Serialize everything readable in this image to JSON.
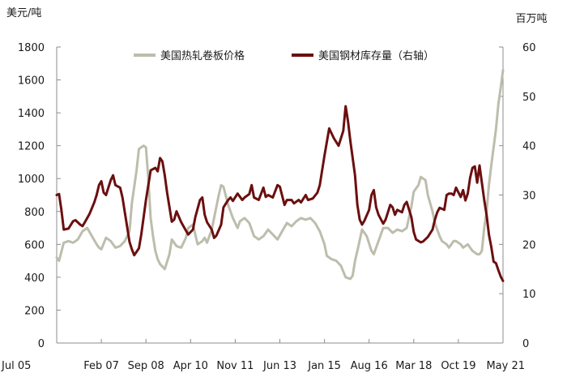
{
  "chart_data": {
    "type": "line",
    "x_tick_labels": [
      "Jul 05",
      "Feb 07",
      "Sep 08",
      "Apr 10",
      "Nov 11",
      "Jun 13",
      "Jan 15",
      "Aug 16",
      "Mar 18",
      "Oct 19",
      "May 21"
    ],
    "x_start": "2005-07",
    "x_end": "2021-05",
    "y_left": {
      "unit": "美元/吨",
      "min": 0,
      "max": 1800,
      "ticks": [
        0,
        200,
        400,
        600,
        800,
        1000,
        1200,
        1400,
        1600,
        1800
      ]
    },
    "y_right": {
      "unit": "百万吨",
      "min": 0,
      "max": 60,
      "ticks": [
        0,
        10,
        20,
        30,
        40,
        50,
        60
      ]
    },
    "grid": false,
    "legend_position": "top",
    "series": [
      {
        "name": "美国热轧卷板价格",
        "axis": "left",
        "color": "#bdbdad",
        "points": [
          [
            "2005-07",
            520
          ],
          [
            "2005-08",
            500
          ],
          [
            "2005-10",
            610
          ],
          [
            "2005-12",
            620
          ],
          [
            "2006-02",
            610
          ],
          [
            "2006-04",
            630
          ],
          [
            "2006-06",
            680
          ],
          [
            "2006-08",
            700
          ],
          [
            "2006-10",
            650
          ],
          [
            "2006-12",
            600
          ],
          [
            "2007-01",
            580
          ],
          [
            "2007-02",
            570
          ],
          [
            "2007-04",
            640
          ],
          [
            "2007-06",
            620
          ],
          [
            "2007-08",
            580
          ],
          [
            "2007-10",
            590
          ],
          [
            "2007-12",
            620
          ],
          [
            "2008-02",
            680
          ],
          [
            "2008-03",
            850
          ],
          [
            "2008-05",
            1050
          ],
          [
            "2008-06",
            1180
          ],
          [
            "2008-08",
            1200
          ],
          [
            "2008-09",
            1190
          ],
          [
            "2008-10",
            1000
          ],
          [
            "2008-11",
            760
          ],
          [
            "2008-12",
            650
          ],
          [
            "2009-01",
            560
          ],
          [
            "2009-02",
            510
          ],
          [
            "2009-03",
            480
          ],
          [
            "2009-05",
            450
          ],
          [
            "2009-07",
            540
          ],
          [
            "2009-08",
            630
          ],
          [
            "2009-10",
            590
          ],
          [
            "2009-12",
            580
          ],
          [
            "2010-02",
            640
          ],
          [
            "2010-03",
            700
          ],
          [
            "2010-05",
            720
          ],
          [
            "2010-07",
            600
          ],
          [
            "2010-09",
            620
          ],
          [
            "2010-10",
            640
          ],
          [
            "2010-11",
            610
          ],
          [
            "2011-01",
            690
          ],
          [
            "2011-03",
            830
          ],
          [
            "2011-04",
            900
          ],
          [
            "2011-05",
            960
          ],
          [
            "2011-06",
            950
          ],
          [
            "2011-08",
            840
          ],
          [
            "2011-10",
            760
          ],
          [
            "2011-12",
            700
          ],
          [
            "2012-01",
            740
          ],
          [
            "2012-03",
            760
          ],
          [
            "2012-05",
            730
          ],
          [
            "2012-07",
            650
          ],
          [
            "2012-09",
            630
          ],
          [
            "2012-11",
            650
          ],
          [
            "2013-01",
            690
          ],
          [
            "2013-03",
            660
          ],
          [
            "2013-05",
            630
          ],
          [
            "2013-07",
            680
          ],
          [
            "2013-09",
            730
          ],
          [
            "2013-11",
            710
          ],
          [
            "2014-01",
            740
          ],
          [
            "2014-03",
            760
          ],
          [
            "2014-05",
            750
          ],
          [
            "2014-07",
            760
          ],
          [
            "2014-09",
            730
          ],
          [
            "2014-11",
            680
          ],
          [
            "2015-01",
            600
          ],
          [
            "2015-02",
            530
          ],
          [
            "2015-04",
            510
          ],
          [
            "2015-06",
            500
          ],
          [
            "2015-08",
            470
          ],
          [
            "2015-10",
            400
          ],
          [
            "2015-12",
            390
          ],
          [
            "2016-01",
            410
          ],
          [
            "2016-02",
            500
          ],
          [
            "2016-03",
            560
          ],
          [
            "2016-05",
            690
          ],
          [
            "2016-07",
            650
          ],
          [
            "2016-09",
            560
          ],
          [
            "2016-10",
            540
          ],
          [
            "2016-12",
            620
          ],
          [
            "2017-02",
            700
          ],
          [
            "2017-04",
            700
          ],
          [
            "2017-06",
            670
          ],
          [
            "2017-08",
            690
          ],
          [
            "2017-10",
            680
          ],
          [
            "2017-12",
            700
          ],
          [
            "2018-02",
            830
          ],
          [
            "2018-03",
            920
          ],
          [
            "2018-05",
            960
          ],
          [
            "2018-06",
            1010
          ],
          [
            "2018-08",
            990
          ],
          [
            "2018-09",
            900
          ],
          [
            "2018-11",
            800
          ],
          [
            "2018-12",
            730
          ],
          [
            "2019-02",
            650
          ],
          [
            "2019-03",
            620
          ],
          [
            "2019-05",
            600
          ],
          [
            "2019-06",
            580
          ],
          [
            "2019-08",
            620
          ],
          [
            "2019-09",
            620
          ],
          [
            "2019-11",
            600
          ],
          [
            "2019-12",
            580
          ],
          [
            "2020-01",
            590
          ],
          [
            "2020-02",
            600
          ],
          [
            "2020-04",
            560
          ],
          [
            "2020-06",
            540
          ],
          [
            "2020-07",
            540
          ],
          [
            "2020-08",
            560
          ],
          [
            "2020-09",
            700
          ],
          [
            "2020-10",
            800
          ],
          [
            "2020-11",
            960
          ],
          [
            "2020-12",
            1080
          ],
          [
            "2021-02",
            1300
          ],
          [
            "2021-03",
            1450
          ],
          [
            "2021-04",
            1550
          ],
          [
            "2021-05",
            1660
          ]
        ]
      },
      {
        "name": "美国钢材库存量（右轴）",
        "axis": "right",
        "color": "#6b0f0f",
        "points": [
          [
            "2005-07",
            30.0
          ],
          [
            "2005-08",
            30.2
          ],
          [
            "2005-09",
            27.0
          ],
          [
            "2005-10",
            23.0
          ],
          [
            "2005-12",
            23.2
          ],
          [
            "2006-02",
            24.7
          ],
          [
            "2006-03",
            24.9
          ],
          [
            "2006-05",
            24.0
          ],
          [
            "2006-06",
            23.7
          ],
          [
            "2006-07",
            24.5
          ],
          [
            "2006-09",
            26.2
          ],
          [
            "2006-11",
            28.5
          ],
          [
            "2006-12",
            30.0
          ],
          [
            "2007-01",
            32.0
          ],
          [
            "2007-02",
            32.8
          ],
          [
            "2007-03",
            30.5
          ],
          [
            "2007-04",
            30.0
          ],
          [
            "2007-06",
            33.0
          ],
          [
            "2007-07",
            34.0
          ],
          [
            "2007-08",
            32.0
          ],
          [
            "2007-10",
            31.5
          ],
          [
            "2007-11",
            29.5
          ],
          [
            "2008-01",
            23.5
          ],
          [
            "2008-02",
            20.5
          ],
          [
            "2008-03",
            19.0
          ],
          [
            "2008-04",
            17.8
          ],
          [
            "2008-05",
            18.5
          ],
          [
            "2008-06",
            19.2
          ],
          [
            "2008-07",
            22.0
          ],
          [
            "2008-09",
            29.0
          ],
          [
            "2008-11",
            35.0
          ],
          [
            "2009-01",
            35.5
          ],
          [
            "2009-02",
            34.8
          ],
          [
            "2009-03",
            37.5
          ],
          [
            "2009-04",
            36.8
          ],
          [
            "2009-05",
            34.0
          ],
          [
            "2009-06",
            30.5
          ],
          [
            "2009-08",
            24.6
          ],
          [
            "2009-09",
            25.0
          ],
          [
            "2009-10",
            26.7
          ],
          [
            "2009-12",
            24.5
          ],
          [
            "2010-02",
            22.8
          ],
          [
            "2010-03",
            22.0
          ],
          [
            "2010-05",
            23.0
          ],
          [
            "2010-06",
            25.5
          ],
          [
            "2010-08",
            29.0
          ],
          [
            "2010-09",
            29.5
          ],
          [
            "2010-10",
            26.0
          ],
          [
            "2010-11",
            24.5
          ],
          [
            "2011-01",
            23.0
          ],
          [
            "2011-02",
            21.3
          ],
          [
            "2011-03",
            21.8
          ],
          [
            "2011-05",
            24.0
          ],
          [
            "2011-06",
            27.5
          ],
          [
            "2011-08",
            29.0
          ],
          [
            "2011-09",
            29.5
          ],
          [
            "2011-10",
            28.8
          ],
          [
            "2011-12",
            30.3
          ],
          [
            "2012-02",
            29.0
          ],
          [
            "2012-03",
            29.5
          ],
          [
            "2012-05",
            30.2
          ],
          [
            "2012-06",
            32.0
          ],
          [
            "2012-07",
            29.5
          ],
          [
            "2012-09",
            29.0
          ],
          [
            "2012-11",
            31.5
          ],
          [
            "2012-12",
            29.6
          ],
          [
            "2013-01",
            30.0
          ],
          [
            "2013-03",
            29.5
          ],
          [
            "2013-05",
            32.0
          ],
          [
            "2013-06",
            31.7
          ],
          [
            "2013-08",
            28.0
          ],
          [
            "2013-09",
            29.0
          ],
          [
            "2013-11",
            29.0
          ],
          [
            "2013-12",
            28.3
          ],
          [
            "2014-02",
            29.0
          ],
          [
            "2014-03",
            28.5
          ],
          [
            "2014-05",
            30.0
          ],
          [
            "2014-06",
            29.0
          ],
          [
            "2014-08",
            29.3
          ],
          [
            "2014-10",
            30.5
          ],
          [
            "2014-11",
            32.0
          ],
          [
            "2015-01",
            38.0
          ],
          [
            "2015-03",
            43.5
          ],
          [
            "2015-05",
            41.5
          ],
          [
            "2015-07",
            40.0
          ],
          [
            "2015-09",
            43.0
          ],
          [
            "2015-10",
            48.0
          ],
          [
            "2015-11",
            45.0
          ],
          [
            "2015-12",
            41.0
          ],
          [
            "2016-02",
            34.0
          ],
          [
            "2016-03",
            28.0
          ],
          [
            "2016-04",
            25.0
          ],
          [
            "2016-05",
            24.0
          ],
          [
            "2016-06",
            24.8
          ],
          [
            "2016-08",
            27.0
          ],
          [
            "2016-09",
            30.0
          ],
          [
            "2016-10",
            31.0
          ],
          [
            "2016-11",
            27.5
          ],
          [
            "2016-12",
            26.0
          ],
          [
            "2017-02",
            24.2
          ],
          [
            "2017-03",
            25.0
          ],
          [
            "2017-05",
            28.0
          ],
          [
            "2017-06",
            27.5
          ],
          [
            "2017-07",
            26.0
          ],
          [
            "2017-08",
            27.0
          ],
          [
            "2017-10",
            26.5
          ],
          [
            "2017-11",
            28.0
          ],
          [
            "2017-12",
            28.6
          ],
          [
            "2018-02",
            25.5
          ],
          [
            "2018-03",
            22.5
          ],
          [
            "2018-04",
            21.0
          ],
          [
            "2018-06",
            20.4
          ],
          [
            "2018-07",
            20.6
          ],
          [
            "2018-09",
            21.5
          ],
          [
            "2018-11",
            23.0
          ],
          [
            "2018-12",
            25.0
          ],
          [
            "2019-01",
            26.5
          ],
          [
            "2019-02",
            27.4
          ],
          [
            "2019-04",
            27.0
          ],
          [
            "2019-05",
            30.0
          ],
          [
            "2019-06",
            30.3
          ],
          [
            "2019-07",
            30.3
          ],
          [
            "2019-08",
            30.0
          ],
          [
            "2019-09",
            31.5
          ],
          [
            "2019-11",
            29.6
          ],
          [
            "2019-12",
            31.0
          ],
          [
            "2020-01",
            28.9
          ],
          [
            "2020-02",
            30.3
          ],
          [
            "2020-03",
            33.5
          ],
          [
            "2020-04",
            35.5
          ],
          [
            "2020-05",
            35.8
          ],
          [
            "2020-06",
            32.5
          ],
          [
            "2020-07",
            36.0
          ],
          [
            "2020-08",
            32.5
          ],
          [
            "2020-09",
            29.0
          ],
          [
            "2020-10",
            26.0
          ],
          [
            "2020-11",
            22.0
          ],
          [
            "2020-12",
            19.5
          ],
          [
            "2021-01",
            16.5
          ],
          [
            "2021-02",
            16.2
          ],
          [
            "2021-03",
            14.8
          ],
          [
            "2021-04",
            13.5
          ],
          [
            "2021-05",
            12.6
          ]
        ]
      }
    ]
  }
}
